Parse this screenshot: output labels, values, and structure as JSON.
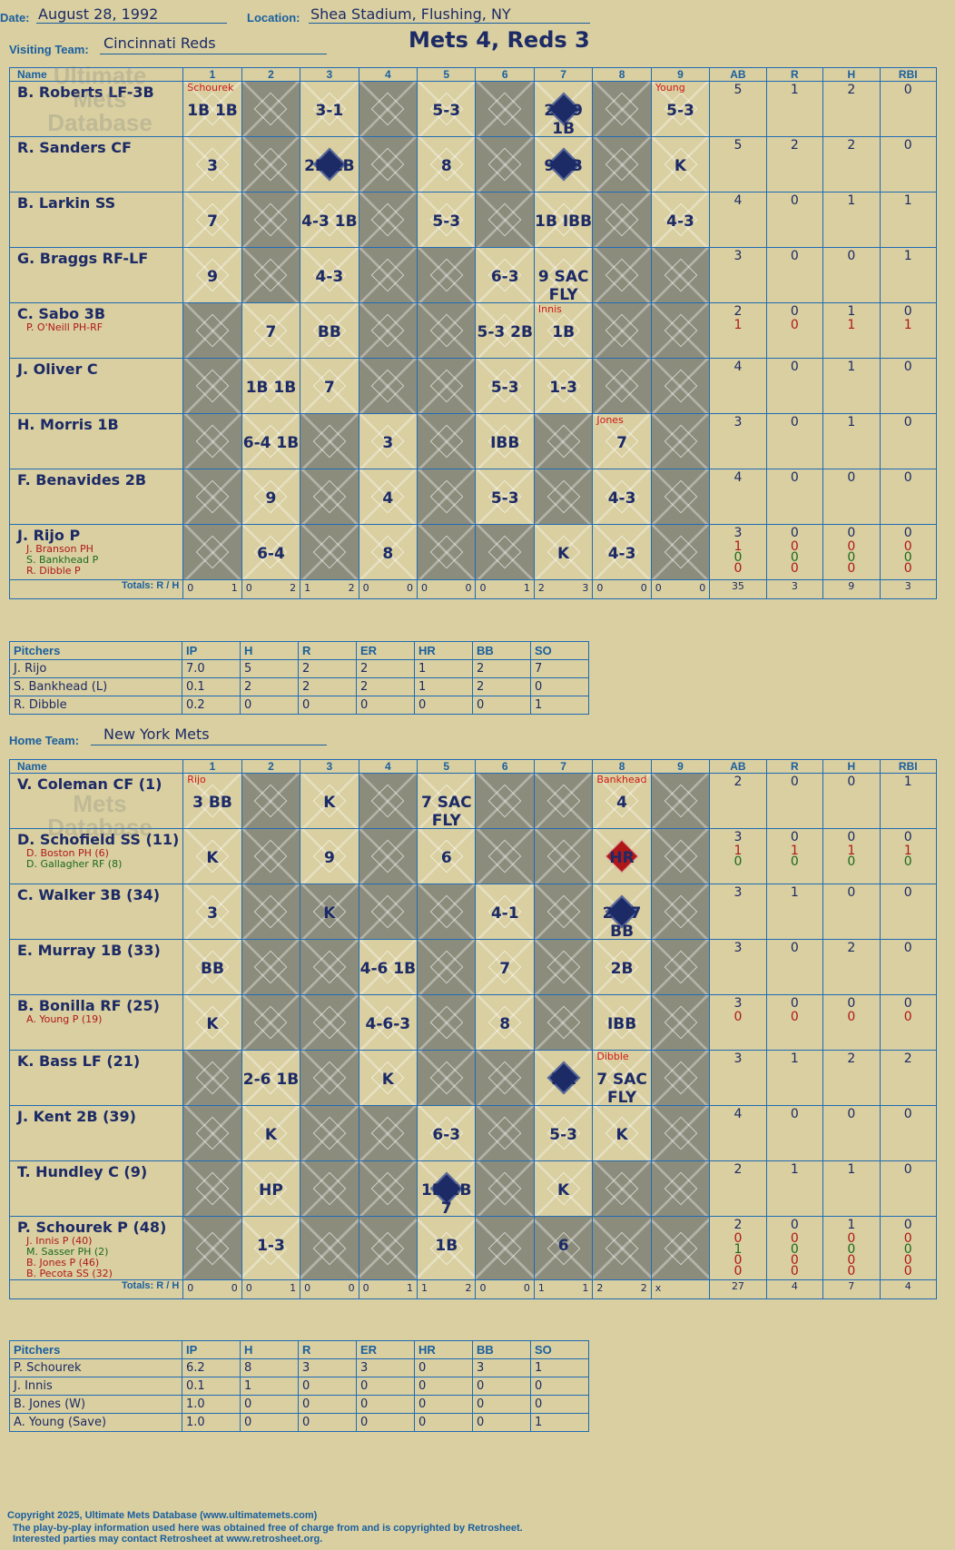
{
  "header": {
    "date_label": "Date:",
    "date": "August 28, 1992",
    "location_label": "Location:",
    "location": "Shea Stadium, Flushing, NY",
    "visiting_label": "Visiting Team:",
    "visiting_team": "Cincinnati Reds",
    "title": "Mets 4, Reds 3",
    "home_label": "Home Team:",
    "home_team": "New York Mets"
  },
  "columns": {
    "name": "Name",
    "innings": [
      "1",
      "2",
      "3",
      "4",
      "5",
      "6",
      "7",
      "8",
      "9"
    ],
    "stats": [
      "AB",
      "R",
      "H",
      "RBI"
    ],
    "totals_label": "Totals:",
    "r_label": "R",
    "h_label": "H"
  },
  "watermark": {
    "line1": "Ultimate",
    "line2": "Mets",
    "line3": "Database",
    "line4": "ultimatemets.com"
  },
  "visitors": {
    "rows": [
      {
        "name": "B. Roberts LF-3B",
        "subs": [],
        "ab": [
          "5"
        ],
        "r": [
          "1"
        ],
        "h": [
          "2"
        ],
        "rbi": [
          "0"
        ]
      },
      {
        "name": "R. Sanders CF",
        "subs": [],
        "ab": [
          "5"
        ],
        "r": [
          "2"
        ],
        "h": [
          "2"
        ],
        "rbi": [
          "0"
        ]
      },
      {
        "name": "B. Larkin SS",
        "subs": [],
        "ab": [
          "4"
        ],
        "r": [
          "0"
        ],
        "h": [
          "1"
        ],
        "rbi": [
          "1"
        ]
      },
      {
        "name": "G. Braggs RF-LF",
        "subs": [],
        "ab": [
          "3"
        ],
        "r": [
          "0"
        ],
        "h": [
          "0"
        ],
        "rbi": [
          "1"
        ]
      },
      {
        "name": "C. Sabo 3B",
        "subs": [
          {
            "text": "P. O'Neill PH-RF",
            "color": "red"
          }
        ],
        "ab": [
          "2",
          "1"
        ],
        "r": [
          "0",
          "0"
        ],
        "h": [
          "1",
          "1"
        ],
        "rbi": [
          "0",
          "1"
        ]
      },
      {
        "name": "J. Oliver C",
        "subs": [],
        "ab": [
          "4"
        ],
        "r": [
          "0"
        ],
        "h": [
          "1"
        ],
        "rbi": [
          "0"
        ]
      },
      {
        "name": "H. Morris 1B",
        "subs": [],
        "ab": [
          "3"
        ],
        "r": [
          "0"
        ],
        "h": [
          "1"
        ],
        "rbi": [
          "0"
        ]
      },
      {
        "name": "F. Benavides 2B",
        "subs": [],
        "ab": [
          "4"
        ],
        "r": [
          "0"
        ],
        "h": [
          "0"
        ],
        "rbi": [
          "0"
        ]
      },
      {
        "name": "J. Rijo P",
        "subs": [
          {
            "text": "J. Branson PH",
            "color": "red"
          },
          {
            "text": "S. Bankhead P",
            "color": "green"
          },
          {
            "text": "R. Dibble P",
            "color": "red"
          }
        ],
        "ab": [
          "3",
          "1",
          "0",
          "0"
        ],
        "r": [
          "0",
          "0",
          "0",
          "0"
        ],
        "h": [
          "0",
          "0",
          "0",
          "0"
        ],
        "rbi": [
          "0",
          "0",
          "0",
          "0"
        ]
      }
    ],
    "grid": [
      [
        "1B 1B",
        "",
        "3-1",
        "",
        "5-3",
        "",
        "2B 9 1B",
        "",
        "5-3"
      ],
      [
        "3",
        "",
        "2B 1B",
        "",
        "8",
        "",
        "9 1B",
        "",
        "K"
      ],
      [
        "7",
        "",
        "4-3 1B",
        "",
        "5-3",
        "",
        "1B IBB",
        "",
        "4-3"
      ],
      [
        "9",
        "",
        "4-3",
        "",
        "",
        "6-3",
        "9 SAC FLY",
        "",
        ""
      ],
      [
        "",
        "7",
        "BB",
        "",
        "",
        "5-3 2B",
        "1B",
        "",
        ""
      ],
      [
        "",
        "1B 1B",
        "7",
        "",
        "",
        "5-3",
        "1-3",
        "",
        ""
      ],
      [
        "",
        "6-4 1B",
        "",
        "3",
        "",
        "IBB",
        "",
        "7",
        ""
      ],
      [
        "",
        "9",
        "",
        "4",
        "",
        "5-3",
        "",
        "4-3",
        ""
      ],
      [
        "",
        "6-4",
        "",
        "8",
        "",
        "",
        "K",
        "4-3",
        ""
      ]
    ],
    "notes": {
      "r0c0": "Schourek",
      "r0c8": "Young",
      "r4c6": "Innis",
      "r6c7": "Jones"
    },
    "totals": {
      "innings": [
        [
          "0",
          "1"
        ],
        [
          "0",
          "2"
        ],
        [
          "1",
          "2"
        ],
        [
          "0",
          "0"
        ],
        [
          "0",
          "0"
        ],
        [
          "0",
          "1"
        ],
        [
          "2",
          "3"
        ],
        [
          "0",
          "0"
        ],
        [
          "0",
          "0"
        ]
      ],
      "ab": "35",
      "r": "3",
      "h": "9",
      "rbi": "3"
    }
  },
  "visitor_pitchers": {
    "headers": [
      "Pitchers",
      "IP",
      "H",
      "R",
      "ER",
      "HR",
      "BB",
      "SO"
    ],
    "rows": [
      [
        "J. Rijo",
        "7.0",
        "5",
        "2",
        "2",
        "1",
        "2",
        "7"
      ],
      [
        "S. Bankhead (L)",
        "0.1",
        "2",
        "2",
        "2",
        "1",
        "2",
        "0"
      ],
      [
        "R. Dibble",
        "0.2",
        "0",
        "0",
        "0",
        "0",
        "0",
        "1"
      ]
    ]
  },
  "home": {
    "rows": [
      {
        "name": "V. Coleman CF (1)",
        "subs": [],
        "ab": [
          "2"
        ],
        "r": [
          "0"
        ],
        "h": [
          "0"
        ],
        "rbi": [
          "1"
        ]
      },
      {
        "name": "D. Schofield SS (11)",
        "subs": [
          {
            "text": "D. Boston PH (6)",
            "color": "red"
          },
          {
            "text": "D. Gallagher RF (8)",
            "color": "green"
          }
        ],
        "ab": [
          "3",
          "1",
          "0"
        ],
        "r": [
          "0",
          "1",
          "0"
        ],
        "h": [
          "0",
          "1",
          "0"
        ],
        "rbi": [
          "0",
          "1",
          "0"
        ]
      },
      {
        "name": "C. Walker 3B (34)",
        "subs": [],
        "ab": [
          "3"
        ],
        "r": [
          "1"
        ],
        "h": [
          "0"
        ],
        "rbi": [
          "0"
        ]
      },
      {
        "name": "E. Murray 1B (33)",
        "subs": [],
        "ab": [
          "3"
        ],
        "r": [
          "0"
        ],
        "h": [
          "2"
        ],
        "rbi": [
          "0"
        ]
      },
      {
        "name": "B. Bonilla RF (25)",
        "subs": [
          {
            "text": "A. Young P (19)",
            "color": "red"
          }
        ],
        "ab": [
          "3",
          "0"
        ],
        "r": [
          "0",
          "0"
        ],
        "h": [
          "0",
          "0"
        ],
        "rbi": [
          "0",
          "0"
        ]
      },
      {
        "name": "K. Bass LF (21)",
        "subs": [],
        "ab": [
          "3"
        ],
        "r": [
          "1"
        ],
        "h": [
          "2"
        ],
        "rbi": [
          "2"
        ]
      },
      {
        "name": "J. Kent 2B (39)",
        "subs": [],
        "ab": [
          "4"
        ],
        "r": [
          "0"
        ],
        "h": [
          "0"
        ],
        "rbi": [
          "0"
        ]
      },
      {
        "name": "T. Hundley C (9)",
        "subs": [],
        "ab": [
          "2"
        ],
        "r": [
          "1"
        ],
        "h": [
          "1"
        ],
        "rbi": [
          "0"
        ]
      },
      {
        "name": "P. Schourek P (48)",
        "subs": [
          {
            "text": "J. Innis P (40)",
            "color": "red"
          },
          {
            "text": "M. Sasser PH (2)",
            "color": "green"
          },
          {
            "text": "B. Jones P (46)",
            "color": "red"
          },
          {
            "text": "B. Pecota SS (32)",
            "color": "red"
          }
        ],
        "ab": [
          "2",
          "0",
          "1",
          "0",
          "0"
        ],
        "r": [
          "0",
          "0",
          "0",
          "0",
          "0"
        ],
        "h": [
          "1",
          "0",
          "0",
          "0",
          "0"
        ],
        "rbi": [
          "0",
          "0",
          "0",
          "0",
          "0"
        ]
      }
    ],
    "grid": [
      [
        "3 BB",
        "",
        "K",
        "",
        "7 SAC FLY",
        "",
        "",
        "4",
        ""
      ],
      [
        "K",
        "",
        "9",
        "",
        "6",
        "",
        "",
        "HR",
        ""
      ],
      [
        "3",
        "",
        "K",
        "",
        "",
        "4-1",
        "",
        "2B 7 BB",
        ""
      ],
      [
        "BB",
        "",
        "",
        "4-6 1B",
        "",
        "7",
        "",
        "2B",
        ""
      ],
      [
        "K",
        "",
        "",
        "4-6-3",
        "",
        "8",
        "",
        "IBB",
        ""
      ],
      [
        "",
        "2-6 1B",
        "",
        "K",
        "",
        "",
        "HR",
        "7 SAC FLY",
        ""
      ],
      [
        "",
        "K",
        "",
        "",
        "6-3",
        "",
        "5-3",
        "K",
        ""
      ],
      [
        "",
        "HP",
        "",
        "",
        "1B 2B 7",
        "",
        "K",
        "",
        ""
      ],
      [
        "",
        "1-3",
        "",
        "",
        "1B",
        "",
        "6",
        "",
        ""
      ]
    ],
    "notes": {
      "r0c0": "Rijo",
      "r0c7": "Bankhead",
      "r5c7": "Dibble"
    },
    "totals": {
      "innings": [
        [
          "0",
          "0"
        ],
        [
          "0",
          "1"
        ],
        [
          "0",
          "0"
        ],
        [
          "0",
          "1"
        ],
        [
          "1",
          "2"
        ],
        [
          "0",
          "0"
        ],
        [
          "1",
          "1"
        ],
        [
          "2",
          "2"
        ],
        [
          "x",
          ""
        ]
      ],
      "ab": "27",
      "r": "4",
      "h": "7",
      "rbi": "4"
    }
  },
  "home_pitchers": {
    "headers": [
      "Pitchers",
      "IP",
      "H",
      "R",
      "ER",
      "HR",
      "BB",
      "SO"
    ],
    "rows": [
      [
        "P. Schourek",
        "6.2",
        "8",
        "3",
        "3",
        "0",
        "3",
        "1"
      ],
      [
        "J. Innis",
        "0.1",
        "1",
        "0",
        "0",
        "0",
        "0",
        "0"
      ],
      [
        "B. Jones (W)",
        "1.0",
        "0",
        "0",
        "0",
        "0",
        "0",
        "0"
      ],
      [
        "A. Young (Save)",
        "1.0",
        "0",
        "0",
        "0",
        "0",
        "0",
        "1"
      ]
    ]
  },
  "footer": {
    "line1": "Copyright 2025, Ultimate Mets Database (www.ultimatemets.com)",
    "line2": "The play-by-play information used here was obtained free of charge from and is copyrighted by Retrosheet.",
    "line3": "Interested parties may contact Retrosheet at www.retrosheet.org."
  },
  "colors": {
    "background": "#d9cfa0",
    "grid": "#1f6bb5",
    "ink": "#1c2a66",
    "red": "#b01818",
    "green": "#1c6a1c",
    "gray": "#8c8c7c"
  }
}
